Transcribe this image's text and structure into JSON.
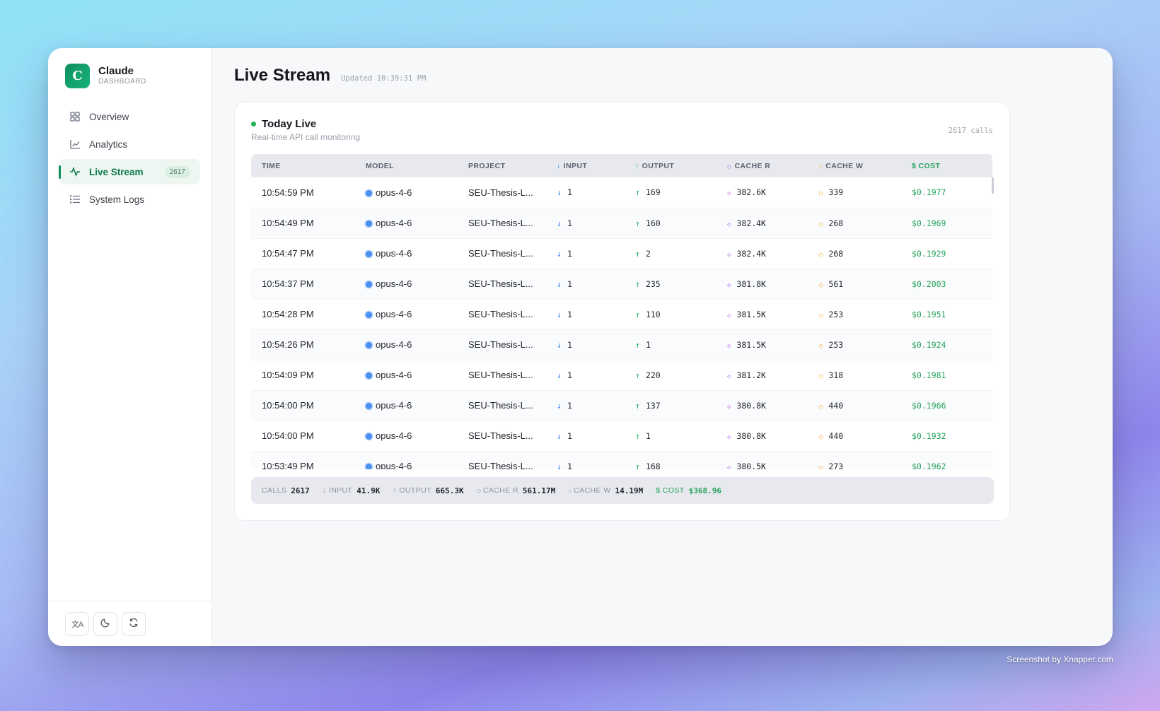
{
  "brand": {
    "logo_letter": "C",
    "name": "Claude",
    "subtitle": "DASHBOARD"
  },
  "nav": [
    {
      "label": "Overview",
      "icon": "grid-icon",
      "active": false
    },
    {
      "label": "Analytics",
      "icon": "chart-line-icon",
      "active": false
    },
    {
      "label": "Live Stream",
      "icon": "activity-icon",
      "active": true,
      "badge": "2617"
    },
    {
      "label": "System Logs",
      "icon": "list-icon",
      "active": false
    }
  ],
  "footer_buttons": [
    "translate-icon",
    "moon-icon",
    "refresh-icon"
  ],
  "header": {
    "title": "Live Stream",
    "updated": "Updated 10:39:31 PM"
  },
  "card": {
    "title": "Today Live",
    "subtitle": "Real-time API call monitoring",
    "calls": "2617 calls"
  },
  "table": {
    "columns": [
      "TIME",
      "MODEL",
      "PROJECT",
      "INPUT",
      "OUTPUT",
      "CACHE R",
      "CACHE W",
      "$ COST"
    ],
    "rows": [
      [
        "10:54:59 PM",
        "opus-4-6",
        "SEU-Thesis-L...",
        "1",
        "169",
        "382.6K",
        "339",
        "$0.1977"
      ],
      [
        "10:54:49 PM",
        "opus-4-6",
        "SEU-Thesis-L...",
        "1",
        "160",
        "382.4K",
        "268",
        "$0.1969"
      ],
      [
        "10:54:47 PM",
        "opus-4-6",
        "SEU-Thesis-L...",
        "1",
        "2",
        "382.4K",
        "268",
        "$0.1929"
      ],
      [
        "10:54:37 PM",
        "opus-4-6",
        "SEU-Thesis-L...",
        "1",
        "235",
        "381.8K",
        "561",
        "$0.2003"
      ],
      [
        "10:54:28 PM",
        "opus-4-6",
        "SEU-Thesis-L...",
        "1",
        "110",
        "381.5K",
        "253",
        "$0.1951"
      ],
      [
        "10:54:26 PM",
        "opus-4-6",
        "SEU-Thesis-L...",
        "1",
        "1",
        "381.5K",
        "253",
        "$0.1924"
      ],
      [
        "10:54:09 PM",
        "opus-4-6",
        "SEU-Thesis-L...",
        "1",
        "220",
        "381.2K",
        "318",
        "$0.1981"
      ],
      [
        "10:54:00 PM",
        "opus-4-6",
        "SEU-Thesis-L...",
        "1",
        "137",
        "380.8K",
        "440",
        "$0.1966"
      ],
      [
        "10:54:00 PM",
        "opus-4-6",
        "SEU-Thesis-L...",
        "1",
        "1",
        "380.8K",
        "440",
        "$0.1932"
      ],
      [
        "10:53:49 PM",
        "opus-4-6",
        "SEU-Thesis-L...",
        "1",
        "168",
        "380.5K",
        "273",
        "$0.1962"
      ]
    ]
  },
  "summary": {
    "calls_label": "CALLS",
    "calls": "2617",
    "input_label": "INPUT",
    "input": "41.9K",
    "output_label": "OUTPUT",
    "output": "665.3K",
    "cache_r_label": "CACHE R",
    "cache_r": "561.17M",
    "cache_w_label": "CACHE W",
    "cache_w": "14.19M",
    "cost_label": "COST",
    "cost": "$368.96"
  },
  "watermark": "Screenshot by Xnapper.com",
  "colors": {
    "accent": "#0f8f5e",
    "input": "#3b82f6",
    "output": "#22b35a",
    "cache_r": "#b06af5",
    "cache_w": "#f4a21e",
    "cost": "#23a35a"
  }
}
